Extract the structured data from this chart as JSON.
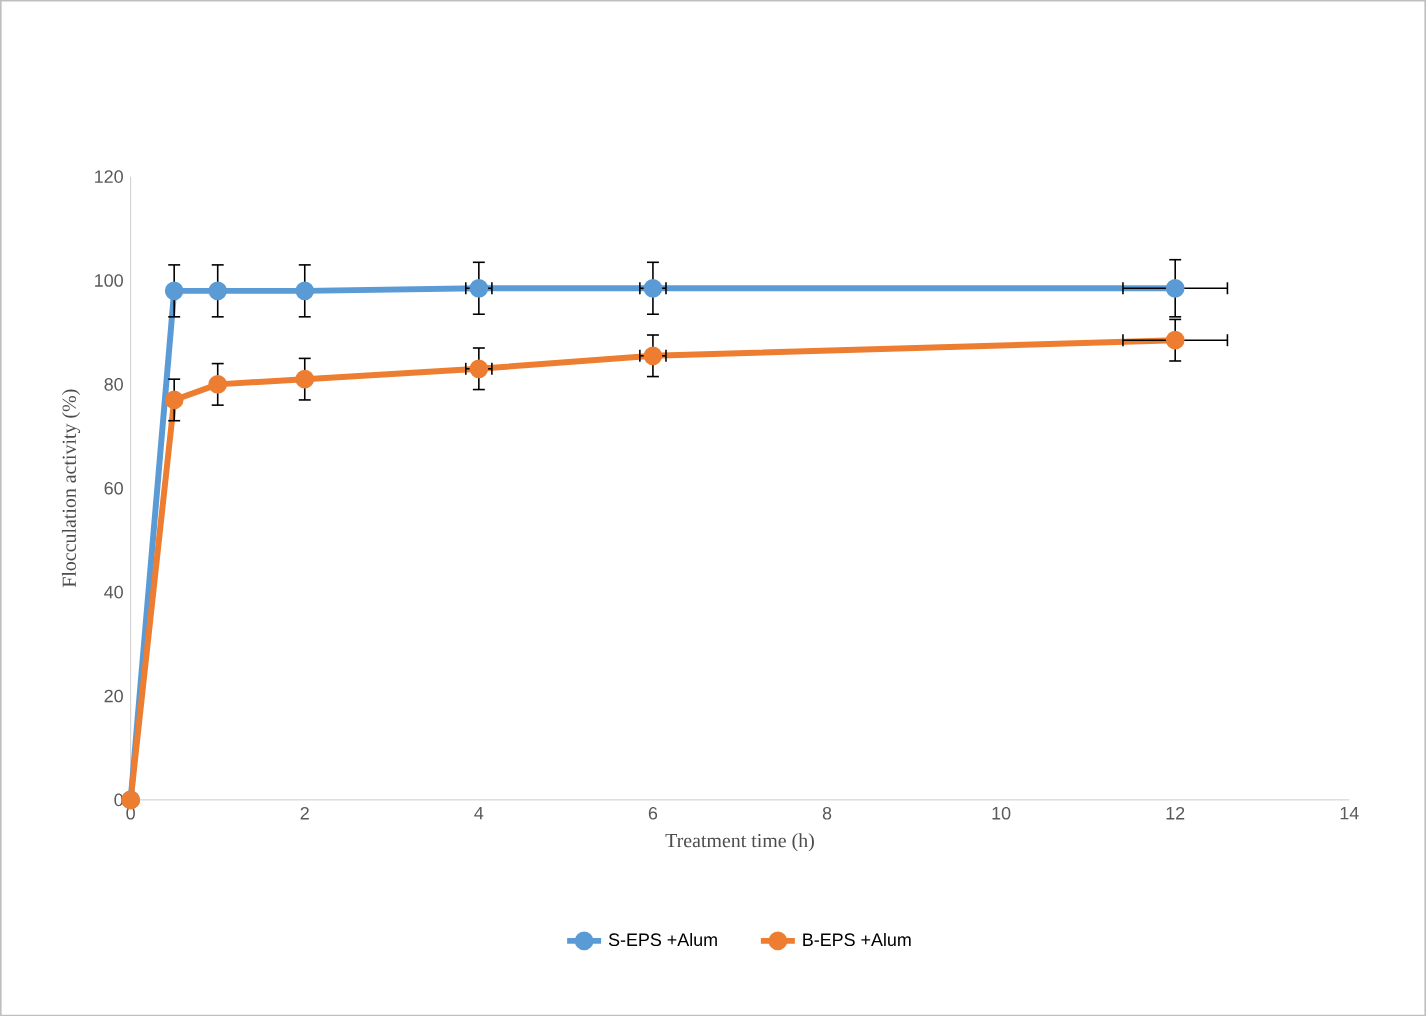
{
  "chart_data": {
    "type": "line",
    "xlabel": "Treatment time (h)",
    "ylabel": "Flocculation activity (%)",
    "x": [
      0,
      0.5,
      1,
      2,
      4,
      6,
      12
    ],
    "series": [
      {
        "name": "S-EPS +Alum",
        "color": "#5b9bd5",
        "values": [
          0,
          98,
          98,
          98,
          98.5,
          98.5,
          98.5
        ],
        "errors": [
          null,
          5,
          5,
          5,
          5,
          5,
          5.5
        ],
        "xerrors": [
          null,
          null,
          null,
          null,
          0.15,
          0.15,
          0.6
        ]
      },
      {
        "name": "B-EPS +Alum",
        "color": "#ed7d31",
        "values": [
          0,
          77,
          80,
          81,
          83,
          85.5,
          88.5
        ],
        "errors": [
          null,
          4,
          4,
          4,
          4,
          4,
          4
        ],
        "xerrors": [
          null,
          null,
          null,
          null,
          0.15,
          0.15,
          0.6
        ]
      }
    ],
    "xlim": [
      0,
      14
    ],
    "xticks": [
      0,
      2,
      4,
      6,
      8,
      10,
      12,
      14
    ],
    "ylim": [
      0,
      120
    ],
    "yticks": [
      0,
      20,
      40,
      60,
      80,
      100,
      120
    ],
    "marker": "circle",
    "legend": "bottom",
    "grid": false
  }
}
